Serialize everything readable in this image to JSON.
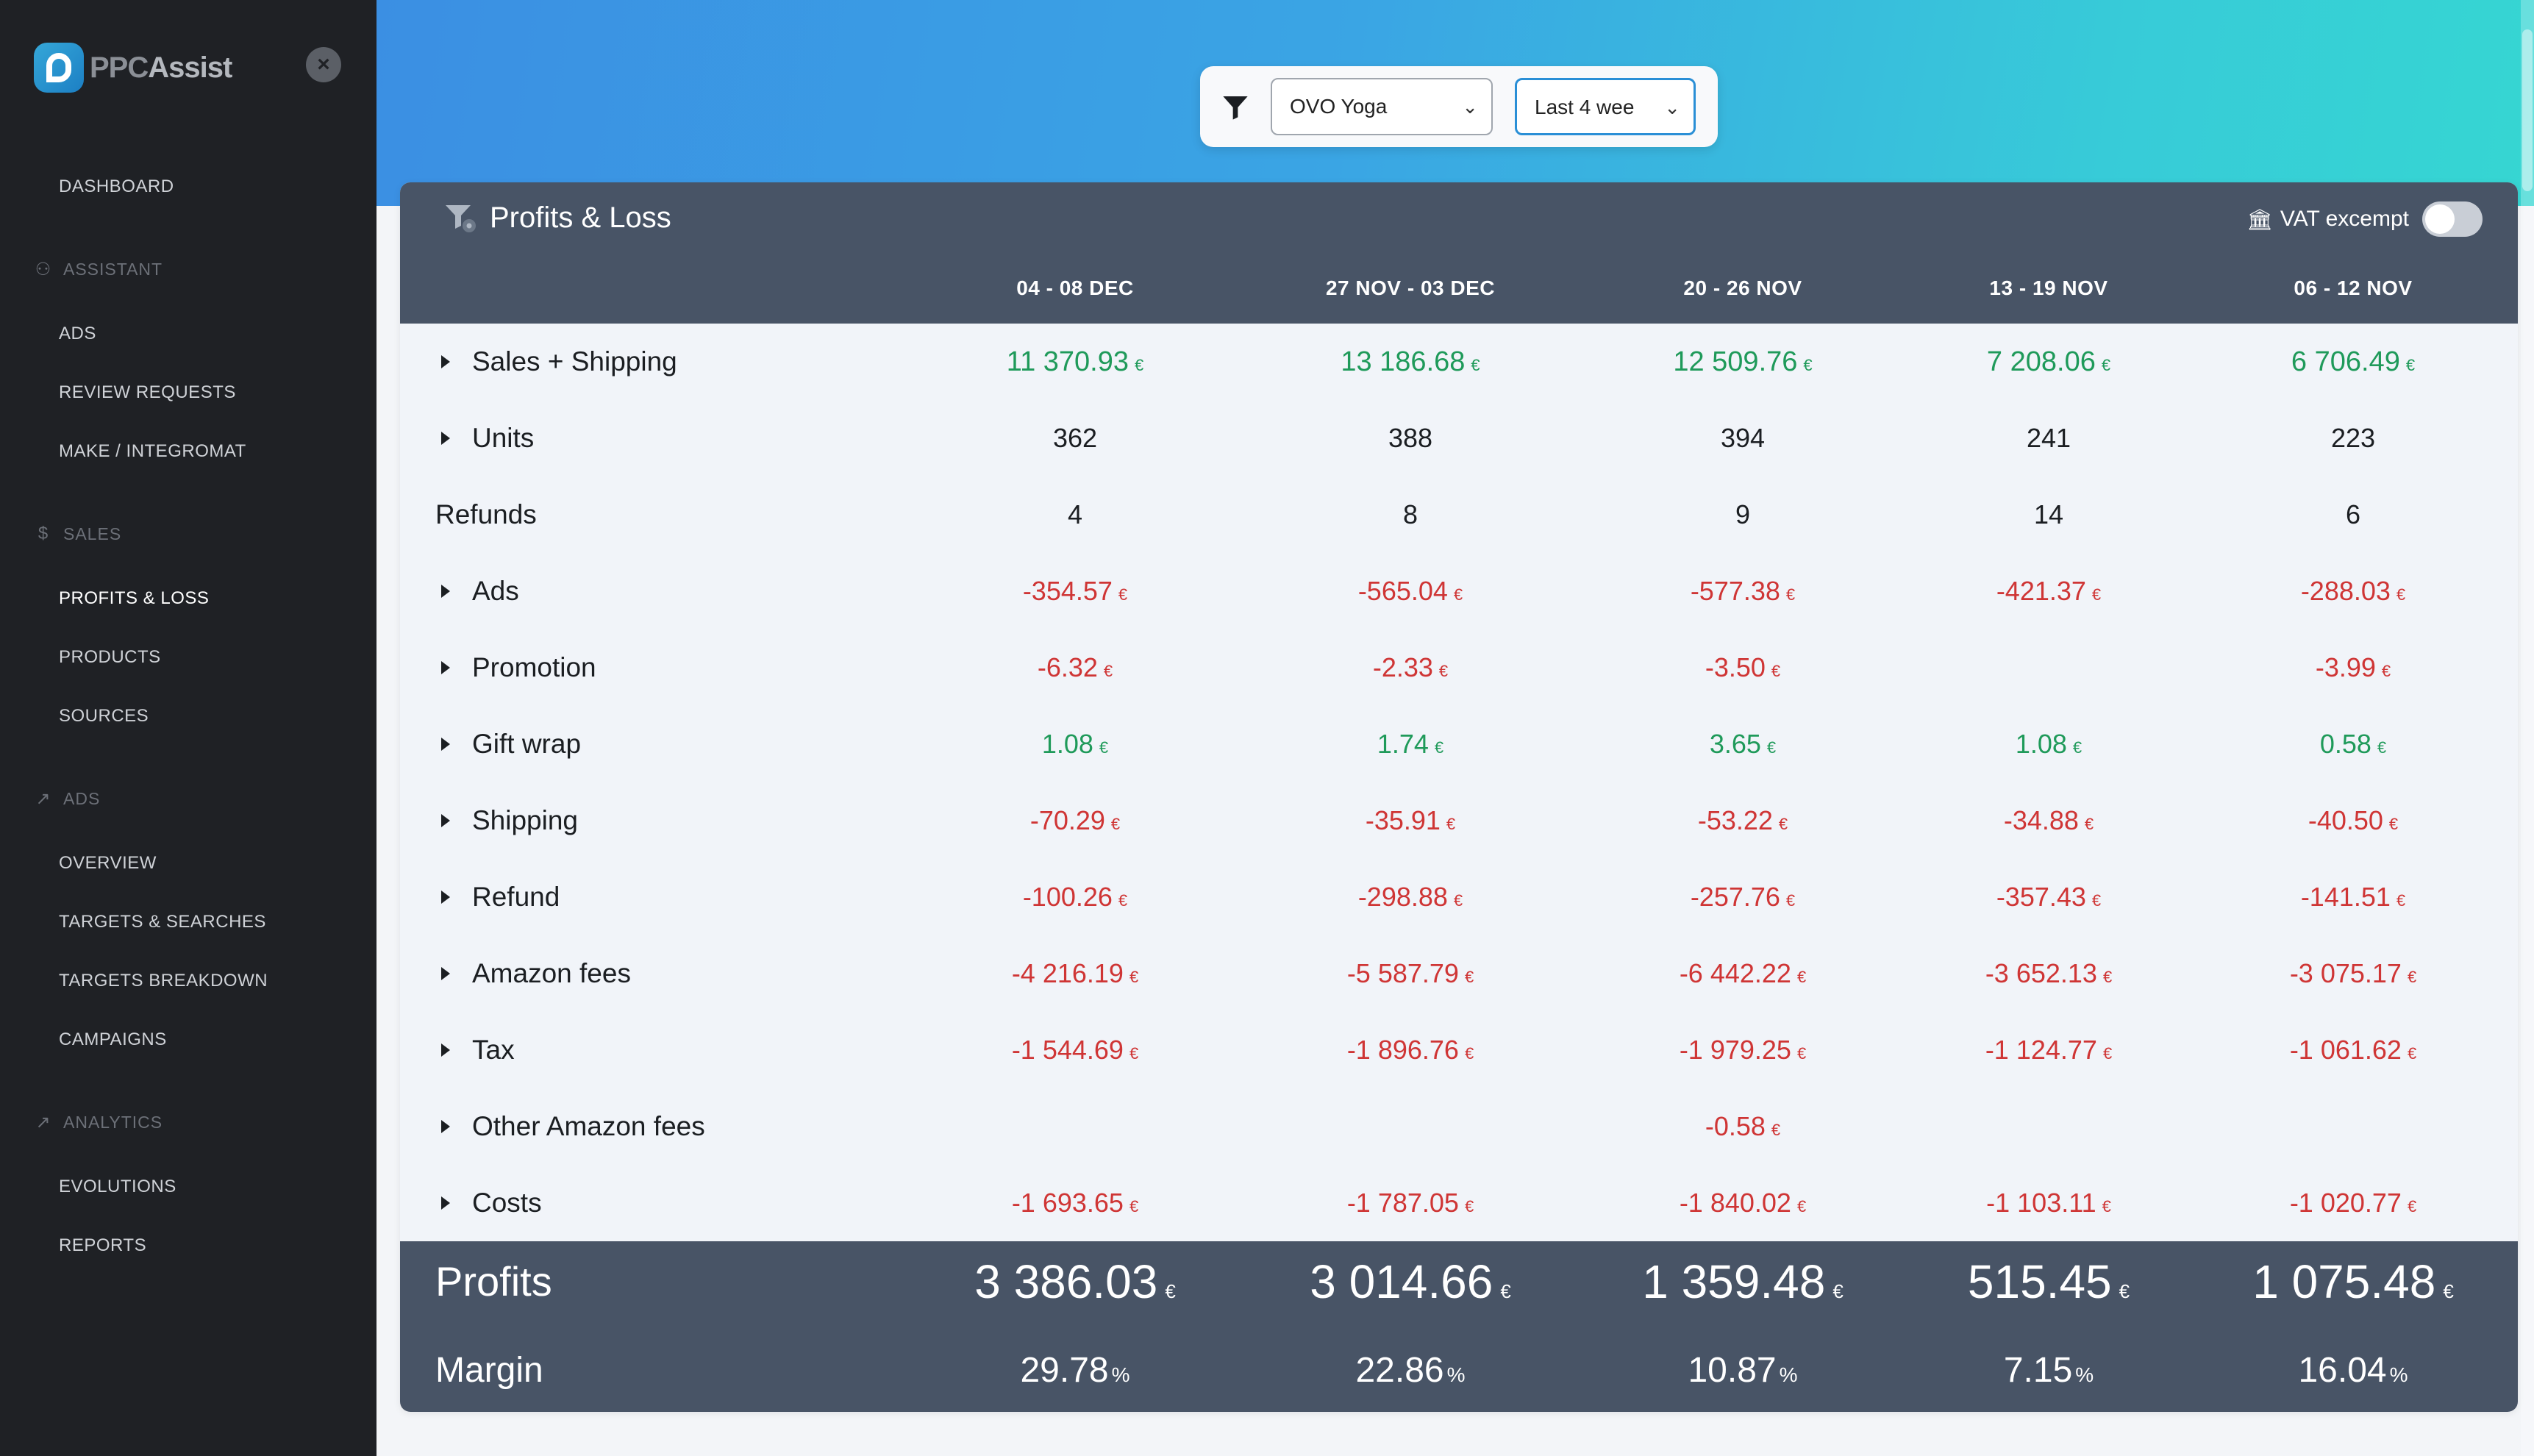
{
  "brand": {
    "logo_text_a": "PPC",
    "logo_text_b": "Assist"
  },
  "sidebar": {
    "close_label": "×",
    "items": [
      {
        "id": "dashboard",
        "label": "DASHBOARD",
        "type": "item"
      },
      {
        "id": "assistant",
        "label": "ASSISTANT",
        "type": "section",
        "icon": "person-icon"
      },
      {
        "id": "ads",
        "label": "ADS",
        "type": "item"
      },
      {
        "id": "review-requests",
        "label": "REVIEW REQUESTS",
        "type": "item"
      },
      {
        "id": "make-integromat",
        "label": "MAKE / INTEGROMAT",
        "type": "item"
      },
      {
        "id": "sales",
        "label": "SALES",
        "type": "section",
        "icon": "dollar-icon"
      },
      {
        "id": "profits-loss",
        "label": "PROFITS & LOSS",
        "type": "item",
        "active": true
      },
      {
        "id": "products",
        "label": "PRODUCTS",
        "type": "item"
      },
      {
        "id": "sources",
        "label": "SOURCES",
        "type": "item"
      },
      {
        "id": "ads-section",
        "label": "ADS",
        "type": "section",
        "icon": "megaphone-icon"
      },
      {
        "id": "overview",
        "label": "OVERVIEW",
        "type": "item"
      },
      {
        "id": "targets-searches",
        "label": "TARGETS & SEARCHES",
        "type": "item"
      },
      {
        "id": "targets-breakdown",
        "label": "TARGETS BREAKDOWN",
        "type": "item"
      },
      {
        "id": "campaigns",
        "label": "CAMPAIGNS",
        "type": "item"
      },
      {
        "id": "analytics",
        "label": "ANALYTICS",
        "type": "section",
        "icon": "chart-icon"
      },
      {
        "id": "evolutions",
        "label": "EVOLUTIONS",
        "type": "item"
      },
      {
        "id": "reports",
        "label": "REPORTS",
        "type": "item"
      }
    ]
  },
  "filters": {
    "account": {
      "value": "OVO Yoga"
    },
    "period": {
      "value": "Last 4 wee"
    }
  },
  "card": {
    "title": "Profits & Loss",
    "vat_label": "VAT excempt",
    "vat_enabled": false
  },
  "table": {
    "currency": "€",
    "percent": "%",
    "columns": [
      "04 - 08 DEC",
      "27 NOV - 03 DEC",
      "20 - 26 NOV",
      "13 - 19 NOV",
      "06 - 12 NOV"
    ],
    "rows": [
      {
        "label": "Sales + Shipping",
        "expandable": true,
        "weight": "bold",
        "kind": "money",
        "values": [
          "11 370.93",
          "13 186.68",
          "12 509.76",
          "7 208.06",
          "6 706.49"
        ],
        "tone": [
          "pos",
          "pos",
          "pos",
          "pos",
          "pos"
        ]
      },
      {
        "label": "Units",
        "expandable": true,
        "kind": "count",
        "values": [
          "362",
          "388",
          "394",
          "241",
          "223"
        ],
        "tone": [
          "neu",
          "neu",
          "neu",
          "neu",
          "neu"
        ]
      },
      {
        "label": "Refunds",
        "expandable": false,
        "kind": "count",
        "values": [
          "4",
          "8",
          "9",
          "14",
          "6"
        ],
        "tone": [
          "neu",
          "neu",
          "neu",
          "neu",
          "neu"
        ]
      },
      {
        "label": "Ads",
        "expandable": true,
        "kind": "money",
        "values": [
          "-354.57",
          "-565.04",
          "-577.38",
          "-421.37",
          "-288.03"
        ],
        "tone": [
          "neg",
          "neg",
          "neg",
          "neg",
          "neg"
        ]
      },
      {
        "label": "Promotion",
        "expandable": true,
        "kind": "money",
        "values": [
          "-6.32",
          "-2.33",
          "-3.50",
          "",
          "-3.99"
        ],
        "tone": [
          "neg",
          "neg",
          "neg",
          "neg",
          "neg"
        ]
      },
      {
        "label": "Gift wrap",
        "expandable": true,
        "kind": "money",
        "values": [
          "1.08",
          "1.74",
          "3.65",
          "1.08",
          "0.58"
        ],
        "tone": [
          "pos",
          "pos",
          "pos",
          "pos",
          "pos"
        ]
      },
      {
        "label": "Shipping",
        "expandable": true,
        "kind": "money",
        "values": [
          "-70.29",
          "-35.91",
          "-53.22",
          "-34.88",
          "-40.50"
        ],
        "tone": [
          "neg",
          "neg",
          "neg",
          "neg",
          "neg"
        ]
      },
      {
        "label": "Refund",
        "expandable": true,
        "kind": "money",
        "values": [
          "-100.26",
          "-298.88",
          "-257.76",
          "-357.43",
          "-141.51"
        ],
        "tone": [
          "neg",
          "neg",
          "neg",
          "neg",
          "neg"
        ]
      },
      {
        "label": "Amazon fees",
        "expandable": true,
        "kind": "money",
        "values": [
          "-4 216.19",
          "-5 587.79",
          "-6 442.22",
          "-3 652.13",
          "-3 075.17"
        ],
        "tone": [
          "neg",
          "neg",
          "neg",
          "neg",
          "neg"
        ]
      },
      {
        "label": "Tax",
        "expandable": true,
        "kind": "money",
        "values": [
          "-1 544.69",
          "-1 896.76",
          "-1 979.25",
          "-1 124.77",
          "-1 061.62"
        ],
        "tone": [
          "neg",
          "neg",
          "neg",
          "neg",
          "neg"
        ]
      },
      {
        "label": "Other Amazon fees",
        "expandable": true,
        "kind": "money",
        "values": [
          "",
          "",
          "-0.58",
          "",
          ""
        ],
        "tone": [
          "neg",
          "neg",
          "neg",
          "neg",
          "neg"
        ]
      },
      {
        "label": "Costs",
        "expandable": true,
        "kind": "money",
        "values": [
          "-1 693.65",
          "-1 787.05",
          "-1 840.02",
          "-1 103.11",
          "-1 020.77"
        ],
        "tone": [
          "neg",
          "neg",
          "neg",
          "neg",
          "neg"
        ]
      }
    ],
    "profits": {
      "label": "Profits",
      "values": [
        "3 386.03",
        "3 014.66",
        "1 359.48",
        "515.45",
        "1 075.48"
      ]
    },
    "margin": {
      "label": "Margin",
      "values": [
        "29.78",
        "22.86",
        "10.87",
        "7.15",
        "16.04"
      ]
    }
  },
  "colors": {
    "positive": "#1f9a5a",
    "negative": "#cf3535",
    "header": "#485466",
    "sidebar": "#1f2125"
  }
}
